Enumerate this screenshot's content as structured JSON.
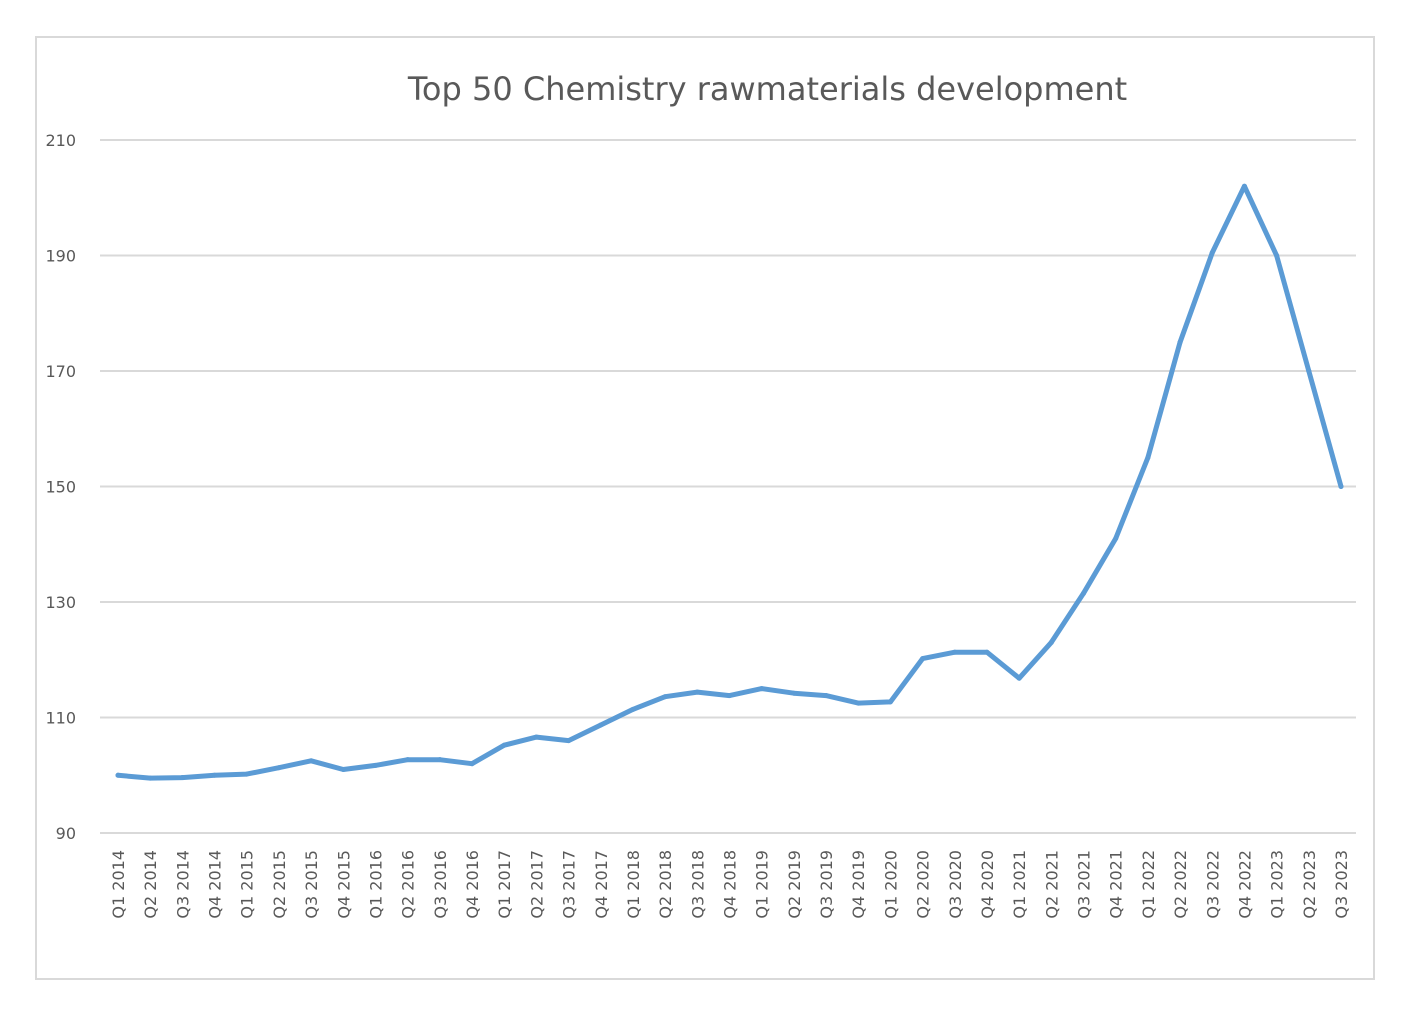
{
  "chart_data": {
    "type": "line",
    "title": "Top 50 Chemistry rawmaterials development",
    "xlabel": "",
    "ylabel": "",
    "ylim": [
      90,
      210
    ],
    "yticks": [
      90,
      110,
      130,
      150,
      170,
      190,
      210
    ],
    "grid": true,
    "legend": "none",
    "colors": {
      "line": "#5b9bd5",
      "grid": "#d9d9d9",
      "text": "#595959",
      "frame": "#d9d9d9"
    },
    "categories": [
      "Q1 2014",
      "Q2 2014",
      "Q3 2014",
      "Q4 2014",
      "Q1 2015",
      "Q2 2015",
      "Q3 2015",
      "Q4 2015",
      "Q1 2016",
      "Q2 2016",
      "Q3 2016",
      "Q4 2016",
      "Q1 2017",
      "Q2 2017",
      "Q3 2017",
      "Q4 2017",
      "Q1 2018",
      "Q2 2018",
      "Q3 2018",
      "Q4 2018",
      "Q1 2019",
      "Q2 2019",
      "Q3 2019",
      "Q4 2019",
      "Q1 2020",
      "Q2 2020",
      "Q3 2020",
      "Q4 2020",
      "Q1 2021",
      "Q2 2021",
      "Q3 2021",
      "Q4 2021",
      "Q1 2022",
      "Q2 2022",
      "Q3 2022",
      "Q4 2022",
      "Q1 2023",
      "Q2 2023",
      "Q3 2023"
    ],
    "series": [
      {
        "name": "Top 50 Chemistry rawmaterials",
        "values": [
          100,
          99.5,
          99.6,
          100,
          100.2,
          101.3,
          102.5,
          101,
          101.7,
          102.7,
          102.7,
          102,
          105.2,
          106.6,
          106,
          108.7,
          111.4,
          113.6,
          114.4,
          113.8,
          115,
          114.2,
          113.8,
          112.5,
          112.7,
          120.2,
          121.3,
          121.3,
          116.8,
          123,
          131.5,
          141,
          155,
          175,
          190.5,
          202,
          190,
          170,
          150
        ]
      }
    ]
  }
}
